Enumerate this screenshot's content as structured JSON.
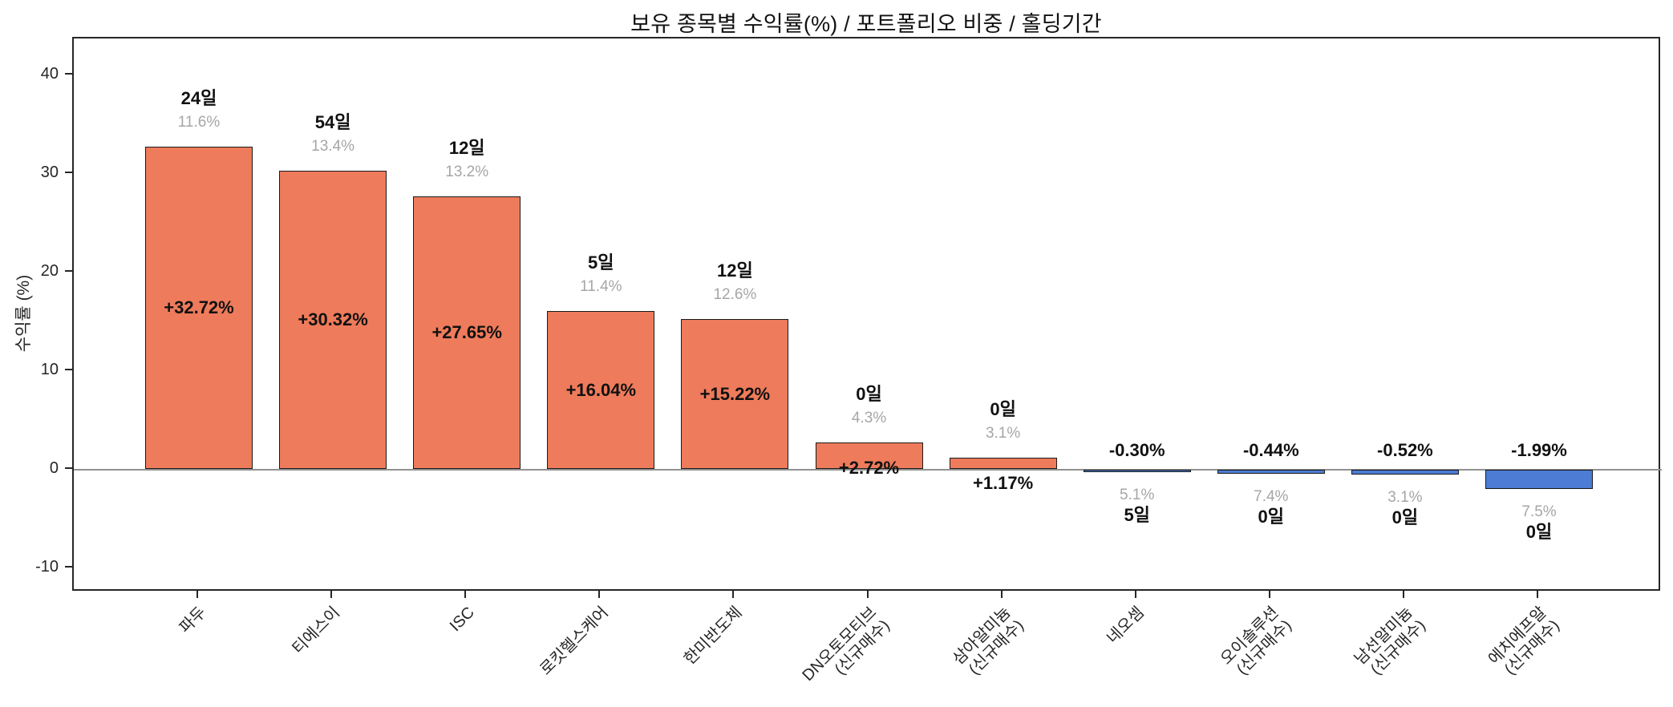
{
  "title": "보유 종목별 수익률(%) / 포트폴리오 비중 / 홀딩기간",
  "y_axis": {
    "label": "수익률 (%)",
    "tick_values": [
      40,
      30,
      20,
      10,
      0,
      -10
    ]
  },
  "colors": {
    "positive_bar": "#EE7B5B",
    "negative_bar": "#4C7CD3",
    "bar_edge": "#1a1a1a",
    "zero_line": "#919191",
    "weight_text": "#a6a6a6",
    "label_text": "#111111",
    "axis": "#262626"
  },
  "bars": [
    {
      "name": "파두",
      "value": 32.72,
      "return_label": "+32.72%",
      "weight_label": "11.6%",
      "days_label": "24일"
    },
    {
      "name": "티에스이",
      "value": 30.32,
      "return_label": "+30.32%",
      "weight_label": "13.4%",
      "days_label": "54일"
    },
    {
      "name": "ISC",
      "value": 27.65,
      "return_label": "+27.65%",
      "weight_label": "13.2%",
      "days_label": "12일"
    },
    {
      "name": "로킷헬스케어",
      "value": 16.04,
      "return_label": "+16.04%",
      "weight_label": "11.4%",
      "days_label": "5일"
    },
    {
      "name": "한미반도체",
      "value": 15.22,
      "return_label": "+15.22%",
      "weight_label": "12.6%",
      "days_label": "12일"
    },
    {
      "name": "DN오토모티브\n(신규매수)",
      "value": 2.72,
      "return_label": "+2.72%",
      "weight_label": "4.3%",
      "days_label": "0일"
    },
    {
      "name": "삼아알미늄\n(신규매수)",
      "value": 1.17,
      "return_label": "+1.17%",
      "weight_label": "3.1%",
      "days_label": "0일"
    },
    {
      "name": "네오셈",
      "value": -0.3,
      "return_label": "-0.30%",
      "weight_label": "5.1%",
      "days_label": "5일"
    },
    {
      "name": "오이솔루션\n(신규매수)",
      "value": -0.44,
      "return_label": "-0.44%",
      "weight_label": "7.4%",
      "days_label": "0일"
    },
    {
      "name": "남선알미늄\n(신규매수)",
      "value": -0.52,
      "return_label": "-0.52%",
      "weight_label": "3.1%",
      "days_label": "0일"
    },
    {
      "name": "에치에프알\n(신규매수)",
      "value": -1.99,
      "return_label": "-1.99%",
      "weight_label": "7.5%",
      "days_label": "0일"
    }
  ],
  "chart_data": {
    "type": "bar",
    "title": "보유 종목별 수익률(%) / 포트폴리오 비중 / 홀딩기간",
    "xlabel": "",
    "ylabel": "수익률 (%)",
    "ylim": [
      -12.5,
      43.7
    ],
    "yticks": [
      40,
      30,
      20,
      10,
      0,
      -10
    ],
    "grid": false,
    "legend": "none",
    "categories": [
      "파두",
      "티에스이",
      "ISC",
      "로킷헬스케어",
      "한미반도체",
      "DN오토모티브\n(신규매수)",
      "삼아알미늄\n(신규매수)",
      "네오셈",
      "오이솔루션\n(신규매수)",
      "남선알미늄\n(신규매수)",
      "에치에프알\n(신규매수)"
    ],
    "series": [
      {
        "name": "수익률(%)",
        "values": [
          32.72,
          30.32,
          27.65,
          16.04,
          15.22,
          2.72,
          1.17,
          -0.3,
          -0.44,
          -0.52,
          -1.99
        ]
      },
      {
        "name": "포트폴리오 비중(%)",
        "values": [
          11.6,
          13.4,
          13.2,
          11.4,
          12.6,
          4.3,
          3.1,
          5.1,
          7.4,
          3.1,
          7.5
        ]
      },
      {
        "name": "홀딩기간(일)",
        "values": [
          24,
          54,
          12,
          5,
          12,
          0,
          0,
          5,
          0,
          0,
          0
        ]
      }
    ],
    "annotations": "양수 막대는 주황색(값 라벨은 막대 내부), 음수 막대는 파란색(값 라벨은 0선 위), 각 막대 위/아래에 홀딩기간(굵게)과 비중(회색) 표시"
  }
}
